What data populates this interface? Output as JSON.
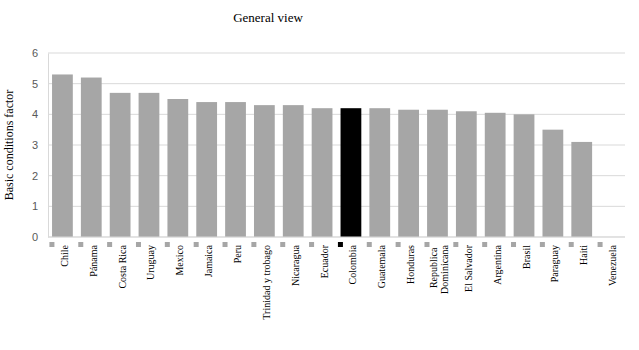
{
  "chart_data": {
    "type": "bar",
    "title": "General view",
    "y_label": "Basic conditions factor",
    "categories": [
      "Chile",
      "Pánama",
      "Costa Rica",
      "Uruguay",
      "Mexico",
      "Jamaica",
      "Peru",
      "Trinidad y trobago",
      "Nicaragua",
      "Ecuador",
      "Colombia",
      "Guatemala",
      "Honduras",
      "Republica Dominicana",
      "El Salvador",
      "Argentina",
      "Brasil",
      "Paraguay",
      "Haiti",
      "Venezuela"
    ],
    "values": [
      5.3,
      5.2,
      4.7,
      4.7,
      4.5,
      4.4,
      4.4,
      4.3,
      4.3,
      4.2,
      4.2,
      4.2,
      4.15,
      4.15,
      4.1,
      4.05,
      4.0,
      3.5,
      3.1,
      null
    ],
    "colors": [
      "#a6a6a6",
      "#a6a6a6",
      "#a6a6a6",
      "#a6a6a6",
      "#a6a6a6",
      "#a6a6a6",
      "#a6a6a6",
      "#a6a6a6",
      "#a6a6a6",
      "#a6a6a6",
      "#000000",
      "#a6a6a6",
      "#a6a6a6",
      "#a6a6a6",
      "#a6a6a6",
      "#a6a6a6",
      "#a6a6a6",
      "#a6a6a6",
      "#a6a6a6",
      "#a6a6a6"
    ],
    "ylim": [
      0,
      6
    ],
    "yticks": [
      0,
      1,
      2,
      3,
      4,
      5,
      6
    ],
    "grid": true
  }
}
